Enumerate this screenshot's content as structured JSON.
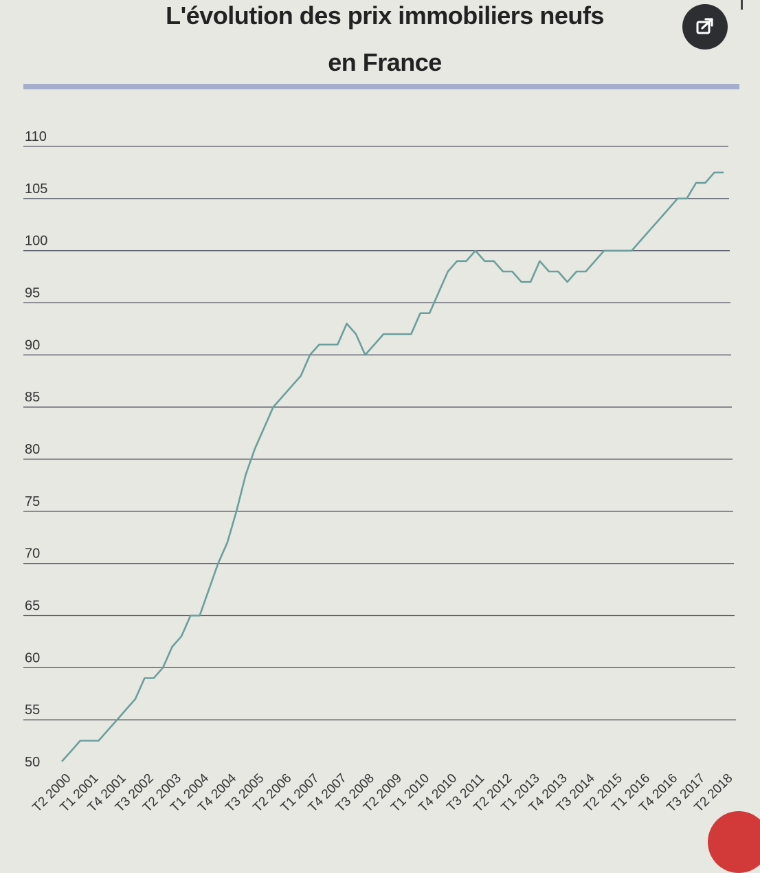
{
  "header": {
    "title_line1": "L'évolution des prix immobiliers neufs",
    "title_line2": "en France",
    "share_icon": "share-icon"
  },
  "colors": {
    "line": "#6a9f9c",
    "grid": "#555a66",
    "rule": "#9aa3c9",
    "background": "#e7e8e2"
  },
  "chart_data": {
    "type": "line",
    "title": "L'évolution des prix immobiliers neufs en France",
    "xlabel": "",
    "ylabel": "",
    "ylim": [
      50,
      110
    ],
    "yticks": [
      110,
      105,
      100,
      95,
      90,
      85,
      80,
      75,
      70,
      65,
      60,
      55,
      50
    ],
    "grid": true,
    "x": [
      "T2 2000",
      "T3 2000",
      "T4 2000",
      "T1 2001",
      "T2 2001",
      "T3 2001",
      "T4 2001",
      "T1 2002",
      "T2 2002",
      "T3 2002",
      "T4 2002",
      "T1 2003",
      "T2 2003",
      "T3 2003",
      "T4 2003",
      "T1 2004",
      "T2 2004",
      "T3 2004",
      "T4 2004",
      "T1 2005",
      "T2 2005",
      "T3 2005",
      "T4 2005",
      "T1 2006",
      "T2 2006",
      "T3 2006",
      "T4 2006",
      "T1 2007",
      "T2 2007",
      "T3 2007",
      "T4 2007",
      "T1 2008",
      "T2 2008",
      "T3 2008",
      "T4 2008",
      "T1 2009",
      "T2 2009",
      "T3 2009",
      "T4 2009",
      "T1 2010",
      "T2 2010",
      "T3 2010",
      "T4 2010",
      "T1 2011",
      "T2 2011",
      "T3 2011",
      "T4 2011",
      "T1 2012",
      "T2 2012",
      "T3 2012",
      "T4 2012",
      "T1 2013",
      "T2 2013",
      "T3 2013",
      "T4 2013",
      "T1 2014",
      "T2 2014",
      "T3 2014",
      "T4 2014",
      "T1 2015",
      "T2 2015",
      "T3 2015",
      "T4 2015",
      "T1 2016",
      "T2 2016",
      "T3 2016",
      "T4 2016",
      "T1 2017",
      "T2 2017",
      "T3 2017",
      "T4 2017",
      "T1 2018",
      "T2 2018"
    ],
    "xtick_labels": [
      "T2 2000",
      "T1 2001",
      "T4 2001",
      "T3 2002",
      "T2 2003",
      "T1 2004",
      "T4 2004",
      "T3 2005",
      "T2 2006",
      "T1 2007",
      "T4 2007",
      "T3 2008",
      "T2 2009",
      "T1 2010",
      "T4 2010",
      "T3 2011",
      "T2 2012",
      "T1 2013",
      "T4 2013",
      "T3 2014",
      "T2 2015",
      "T1 2016",
      "T4 2016",
      "T3 2017",
      "T2 2018"
    ],
    "series": [
      {
        "values": [
          51.0,
          52.0,
          53.0,
          53.0,
          53.0,
          54.0,
          55.0,
          56.0,
          57.0,
          59.0,
          59.0,
          60.0,
          62.0,
          63.0,
          65.0,
          65.0,
          67.5,
          70.0,
          72.0,
          75.0,
          78.5,
          81.0,
          83.0,
          85.0,
          86.0,
          87.0,
          88.0,
          90.0,
          91.0,
          91.0,
          91.0,
          93.0,
          92.0,
          90.0,
          91.0,
          92.0,
          92.0,
          92.0,
          92.0,
          94.0,
          94.0,
          96.0,
          98.0,
          99.0,
          99.0,
          100.0,
          99.0,
          99.0,
          98.0,
          98.0,
          97.0,
          97.0,
          99.0,
          98.0,
          98.0,
          97.0,
          98.0,
          98.0,
          99.0,
          100.0,
          100.0,
          100.0,
          100.0,
          101.0,
          102.0,
          103.0,
          104.0,
          105.0,
          105.0,
          106.5,
          106.5,
          107.5,
          107.5
        ]
      }
    ]
  }
}
